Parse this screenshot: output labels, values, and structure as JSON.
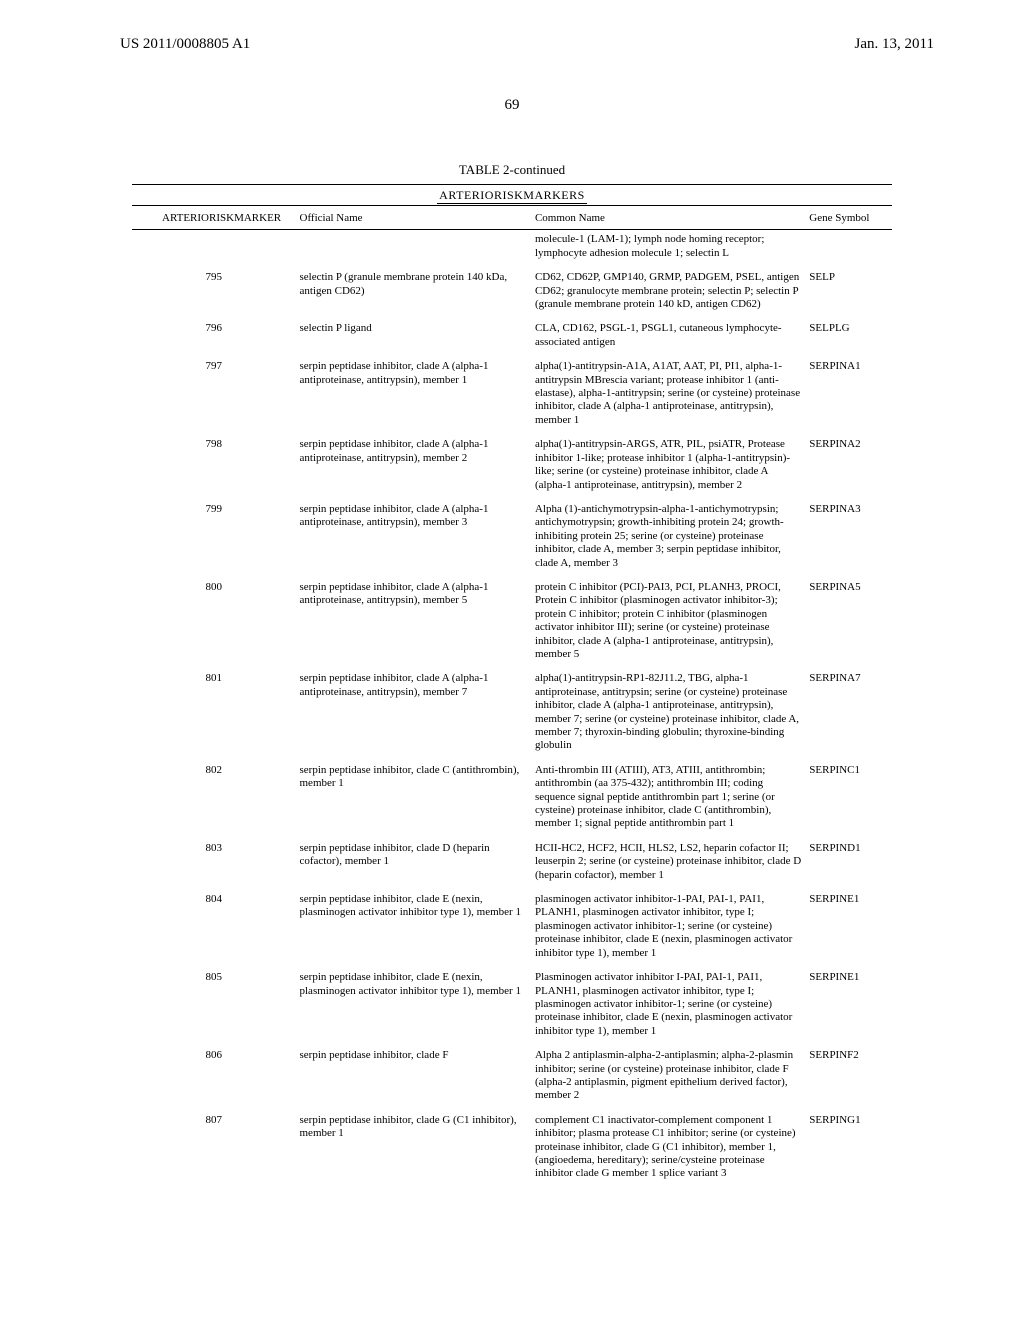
{
  "header": {
    "left": "US 2011/0008805 A1",
    "right": "Jan. 13, 2011"
  },
  "page_number": "69",
  "table": {
    "title": "TABLE 2-continued",
    "subtitle": "ARTERIORISKMARKERS",
    "columns": {
      "marker": "ARTERIORISKMARKER",
      "official": "Official Name",
      "common": "Common Name",
      "gene": "Gene Symbol"
    },
    "rows": [
      {
        "marker": "",
        "official": "",
        "common": "molecule-1 (LAM-1); lymph node homing receptor; lymphocyte adhesion molecule 1; selectin L",
        "gene": ""
      },
      {
        "marker": "795",
        "official": "selectin P (granule membrane protein 140 kDa, antigen CD62)",
        "common": "CD62, CD62P, GMP140, GRMP, PADGEM, PSEL, antigen CD62; granulocyte membrane protein; selectin P; selectin P (granule membrane protein 140 kD, antigen CD62)",
        "gene": "SELP"
      },
      {
        "marker": "796",
        "official": "selectin P ligand",
        "common": "CLA, CD162, PSGL-1, PSGL1, cutaneous lymphocyte-associated antigen",
        "gene": "SELPLG"
      },
      {
        "marker": "797",
        "official": "serpin peptidase inhibitor, clade A (alpha-1 antiproteinase, antitrypsin), member 1",
        "common": "alpha(1)-antitrypsin-A1A, A1AT, AAT, PI, PI1, alpha-1-antitrypsin MBrescia variant; protease inhibitor 1 (anti-elastase), alpha-1-antitrypsin; serine (or cysteine) proteinase inhibitor, clade A (alpha-1 antiproteinase, antitrypsin), member 1",
        "gene": "SERPINA1"
      },
      {
        "marker": "798",
        "official": "serpin peptidase inhibitor, clade A (alpha-1 antiproteinase, antitrypsin), member 2",
        "common": "alpha(1)-antitrypsin-ARGS, ATR, PIL, psiATR, Protease inhibitor 1-like; protease inhibitor 1 (alpha-1-antitrypsin)-like; serine (or cysteine) proteinase inhibitor, clade A (alpha-1 antiproteinase, antitrypsin), member 2",
        "gene": "SERPINA2"
      },
      {
        "marker": "799",
        "official": "serpin peptidase inhibitor, clade A (alpha-1 antiproteinase, antitrypsin), member 3",
        "common": "Alpha (1)-antichymotrypsin-alpha-1-antichymotrypsin; antichymotrypsin; growth-inhibiting protein 24; growth-inhibiting protein 25; serine (or cysteine) proteinase inhibitor, clade A, member 3; serpin peptidase inhibitor, clade A, member 3",
        "gene": "SERPINA3"
      },
      {
        "marker": "800",
        "official": "serpin peptidase inhibitor, clade A (alpha-1 antiproteinase, antitrypsin), member 5",
        "common": "protein C inhibitor (PCI)-PAI3, PCI, PLANH3, PROCI, Protein C inhibitor (plasminogen activator inhibitor-3); protein C inhibitor; protein C inhibitor (plasminogen activator inhibitor III); serine (or cysteine) proteinase inhibitor, clade A (alpha-1 antiproteinase, antitrypsin), member 5",
        "gene": "SERPINA5"
      },
      {
        "marker": "801",
        "official": "serpin peptidase inhibitor, clade A (alpha-1 antiproteinase, antitrypsin), member 7",
        "common": "alpha(1)-antitrypsin-RP1-82J11.2, TBG, alpha-1 antiproteinase, antitrypsin; serine (or cysteine) proteinase inhibitor, clade A (alpha-1 antiproteinase, antitrypsin), member 7; serine (or cysteine) proteinase inhibitor, clade A, member 7; thyroxin-binding globulin; thyroxine-binding globulin",
        "gene": "SERPINA7"
      },
      {
        "marker": "802",
        "official": "serpin peptidase inhibitor, clade C (antithrombin), member 1",
        "common": "Anti-thrombin III (ATIII), AT3, ATIII, antithrombin; antithrombin (aa 375-432); antithrombin III; coding sequence signal peptide antithrombin part 1; serine (or cysteine) proteinase inhibitor, clade C (antithrombin), member 1; signal peptide antithrombin part 1",
        "gene": "SERPINC1"
      },
      {
        "marker": "803",
        "official": "serpin peptidase inhibitor, clade D (heparin cofactor), member 1",
        "common": "HCII-HC2, HCF2, HCII, HLS2, LS2, heparin cofactor II; leuserpin 2; serine (or cysteine) proteinase inhibitor, clade D (heparin cofactor), member 1",
        "gene": "SERPIND1"
      },
      {
        "marker": "804",
        "official": "serpin peptidase inhibitor, clade E (nexin, plasminogen activator inhibitor type 1), member 1",
        "common": "plasminogen activator inhibitor-1-PAI, PAI-1, PAI1, PLANH1, plasminogen activator inhibitor, type I; plasminogen activator inhibitor-1; serine (or cysteine) proteinase inhibitor, clade E (nexin, plasminogen activator inhibitor type 1), member 1",
        "gene": "SERPINE1"
      },
      {
        "marker": "805",
        "official": "serpin peptidase inhibitor, clade E (nexin, plasminogen activator inhibitor type 1), member 1",
        "common": "Plasminogen activator inhibitor I-PAI, PAI-1, PAI1, PLANH1, plasminogen activator inhibitor, type I; plasminogen activator inhibitor-1; serine (or cysteine) proteinase inhibitor, clade E (nexin, plasminogen activator inhibitor type 1), member 1",
        "gene": "SERPINE1"
      },
      {
        "marker": "806",
        "official": "serpin peptidase inhibitor, clade F",
        "common": "Alpha 2 antiplasmin-alpha-2-antiplasmin; alpha-2-plasmin inhibitor; serine (or cysteine) proteinase inhibitor, clade F (alpha-2 antiplasmin, pigment epithelium derived factor), member 2",
        "gene": "SERPINF2"
      },
      {
        "marker": "807",
        "official": "serpin peptidase inhibitor, clade G (C1 inhibitor), member 1",
        "common": "complement C1 inactivator-complement component 1 inhibitor; plasma protease C1 inhibitor; serine (or cysteine) proteinase inhibitor, clade G (C1 inhibitor), member 1, (angioedema, hereditary); serine/cysteine proteinase inhibitor clade G member 1 splice variant 3",
        "gene": "SERPING1"
      }
    ]
  }
}
